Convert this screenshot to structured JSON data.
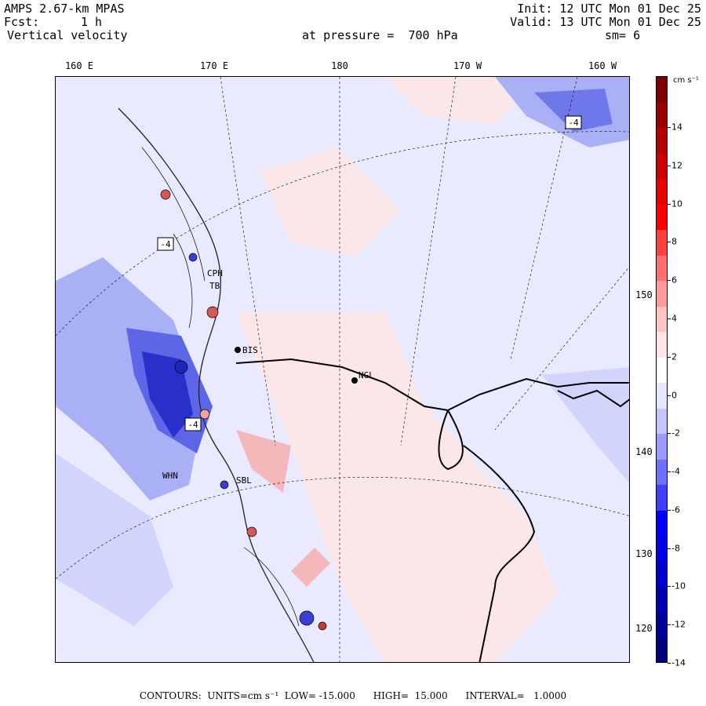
{
  "header": {
    "model": "AMPS 2.67-km MPAS",
    "fcst_label": "Fcst:",
    "fcst_value": "1 h",
    "field": "Vertical velocity",
    "init": "Init: 12 UTC Mon 01 Dec 25",
    "valid": "Valid: 13 UTC Mon 01 Dec 25",
    "level": "at pressure =  700 hPa",
    "smoothing": "sm= 6"
  },
  "lon_labels": [
    "160 E",
    "170 E",
    "180",
    "170 W",
    "160 W"
  ],
  "lat_labels": [
    "150 W",
    "140 W",
    "130 W",
    "120 W"
  ],
  "stations": [
    "BIS",
    "NGL",
    "SBL",
    "WHN",
    "CPH",
    "TB"
  ],
  "box_labels": [
    "-4",
    "-4",
    "-4"
  ],
  "colorbar": {
    "units": "cm s⁻¹",
    "ticks": [
      "14",
      "12",
      "10",
      "8",
      "6",
      "4",
      "2",
      "0",
      "-2",
      "-4",
      "-6",
      "-8",
      "-10",
      "-12",
      "-14"
    ],
    "colors": [
      "#7f0000",
      "#990000",
      "#b30000",
      "#cc0000",
      "#e60000",
      "#ff0000",
      "#ff4040",
      "#ff7070",
      "#ff9a9a",
      "#ffc4c4",
      "#ffe6e6",
      "#ffffff",
      "#e6e6ff",
      "#c4c4ff",
      "#9a9aff",
      "#7070ff",
      "#4040ff",
      "#0000ff",
      "#0000e6",
      "#0000cc",
      "#0000b3",
      "#000099",
      "#00007f"
    ]
  },
  "footer": "CONTOURS:  UNITS=cm s⁻¹  LOW= -15.000      HIGH=  15.000      INTERVAL=   1.0000"
}
